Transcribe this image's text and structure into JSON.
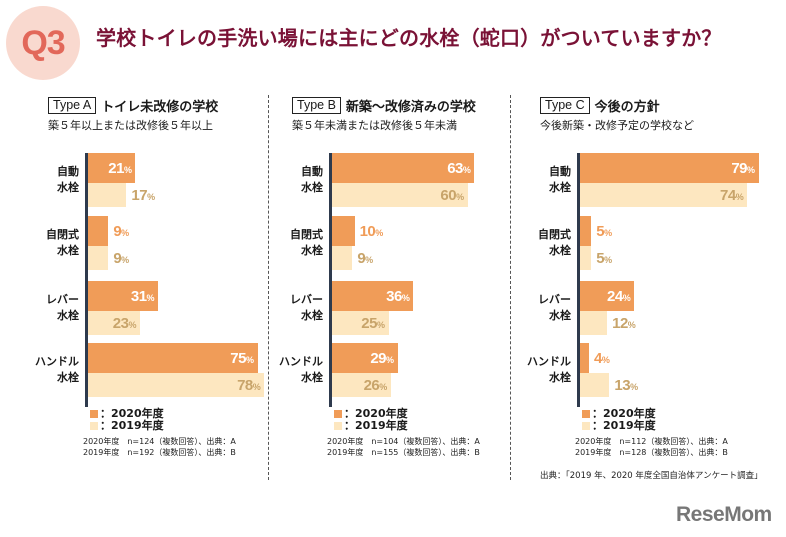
{
  "header": {
    "badge": "Q3",
    "title": "学校トイレの手洗い場には主にどの水栓（蛇口）がついていますか？"
  },
  "legend": {
    "y2020": "：2020年度",
    "y2019": "：2019年度"
  },
  "colors": {
    "y2020": "#f09c58",
    "y2019": "#fde7c0",
    "title": "#7a1236",
    "badge": "#e2685a"
  },
  "source": "出典：「2019 年、2020 年度全国自治体アンケート調査」",
  "logo": "ReseMom",
  "chart_data": [
    {
      "type": "bar",
      "orientation": "horizontal",
      "panel": "Type A",
      "title": "トイレ未改修の学校",
      "subtitle": "築５年以上または改修後５年以上",
      "categories": [
        "自動\n水栓",
        "自閉式\n水栓",
        "レバー\n水栓",
        "ハンドル\n水栓"
      ],
      "category_lines": [
        [
          "自動",
          "水栓"
        ],
        [
          "自閉式",
          "水栓"
        ],
        [
          "レバー",
          "水栓"
        ],
        [
          "ハンドル",
          "水栓"
        ]
      ],
      "series": [
        {
          "name": "2020年度",
          "values": [
            21,
            9,
            31,
            75
          ]
        },
        {
          "name": "2019年度",
          "values": [
            17,
            9,
            23,
            78
          ]
        }
      ],
      "unit": "%",
      "notes": [
        "2020年度　n=124（複数回答）、出典：A",
        "2019年度　n=192（複数回答）、出典：B"
      ]
    },
    {
      "type": "bar",
      "orientation": "horizontal",
      "panel": "Type B",
      "title": "新築～改修済みの学校",
      "subtitle": "築５年未満または改修後５年未満",
      "categories": [
        "自動\n水栓",
        "自閉式\n水栓",
        "レバー\n水栓",
        "ハンドル\n水栓"
      ],
      "category_lines": [
        [
          "自動",
          "水栓"
        ],
        [
          "自閉式",
          "水栓"
        ],
        [
          "レバー",
          "水栓"
        ],
        [
          "ハンドル",
          "水栓"
        ]
      ],
      "series": [
        {
          "name": "2020年度",
          "values": [
            63,
            10,
            36,
            29
          ]
        },
        {
          "name": "2019年度",
          "values": [
            60,
            9,
            25,
            26
          ]
        }
      ],
      "unit": "%",
      "notes": [
        "2020年度　n=104（複数回答）、出典：A",
        "2019年度　n=155（複数回答）、出典：B"
      ]
    },
    {
      "type": "bar",
      "orientation": "horizontal",
      "panel": "Type C",
      "title": "今後の方針",
      "subtitle": "今後新築・改修予定の学校など",
      "categories": [
        "自動\n水栓",
        "自閉式\n水栓",
        "レバー\n水栓",
        "ハンドル\n水栓"
      ],
      "category_lines": [
        [
          "自動",
          "水栓"
        ],
        [
          "自閉式",
          "水栓"
        ],
        [
          "レバー",
          "水栓"
        ],
        [
          "ハンドル",
          "水栓"
        ]
      ],
      "series": [
        {
          "name": "2020年度",
          "values": [
            79,
            5,
            24,
            4
          ]
        },
        {
          "name": "2019年度",
          "values": [
            74,
            5,
            12,
            13
          ]
        }
      ],
      "unit": "%",
      "notes": [
        "2020年度　n=112（複数回答）、出典：A",
        "2019年度　n=128（複数回答）、出典：B"
      ]
    }
  ]
}
